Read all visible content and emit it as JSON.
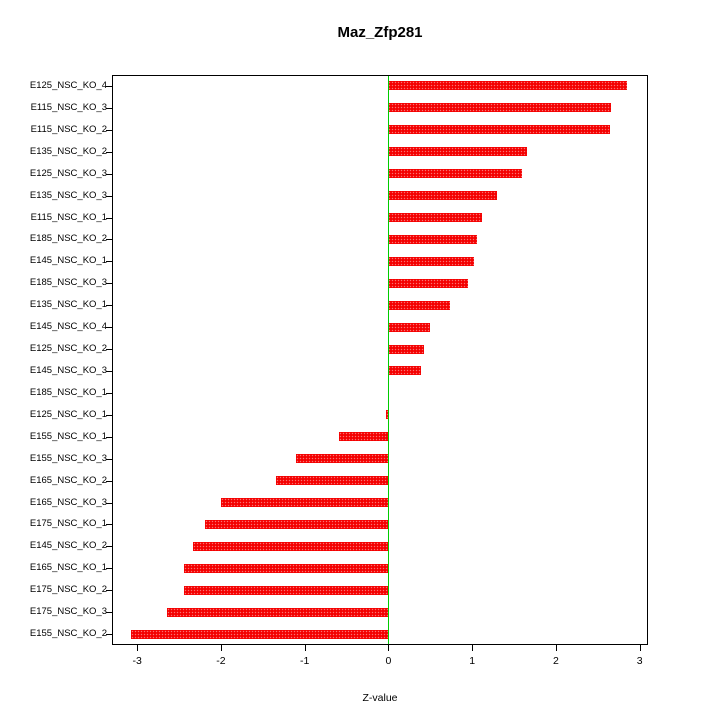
{
  "chart_data": {
    "type": "bar",
    "orientation": "horizontal",
    "title": "Maz_Zfp281",
    "xlabel": "Z-value",
    "ylabel": "",
    "categories": [
      "E125_NSC_KO_4",
      "E115_NSC_KO_3",
      "E115_NSC_KO_2",
      "E135_NSC_KO_2",
      "E125_NSC_KO_3",
      "E135_NSC_KO_3",
      "E115_NSC_KO_1",
      "E185_NSC_KO_2",
      "E145_NSC_KO_1",
      "E185_NSC_KO_3",
      "E135_NSC_KO_1",
      "E145_NSC_KO_4",
      "E125_NSC_KO_2",
      "E145_NSC_KO_3",
      "E185_NSC_KO_1",
      "E125_NSC_KO_1",
      "E155_NSC_KO_1",
      "E155_NSC_KO_3",
      "E165_NSC_KO_2",
      "E165_NSC_KO_3",
      "E175_NSC_KO_1",
      "E145_NSC_KO_2",
      "E165_NSC_KO_1",
      "E175_NSC_KO_2",
      "E175_NSC_KO_3",
      "E155_NSC_KO_2"
    ],
    "values": [
      2.85,
      2.66,
      2.65,
      1.65,
      1.6,
      1.3,
      1.12,
      1.06,
      1.02,
      0.95,
      0.73,
      0.5,
      0.42,
      0.39,
      0.0,
      -0.03,
      -0.59,
      -1.1,
      -1.34,
      -2.0,
      -2.19,
      -2.33,
      -2.44,
      -2.44,
      -2.64,
      -3.07
    ],
    "xlim": [
      -3.3,
      3.1
    ],
    "xticks": [
      -3,
      -2,
      -1,
      0,
      1,
      2,
      3
    ],
    "grid": false,
    "legend": null,
    "bar_color": "#f40000",
    "zero_line_color": "#00cc00"
  }
}
